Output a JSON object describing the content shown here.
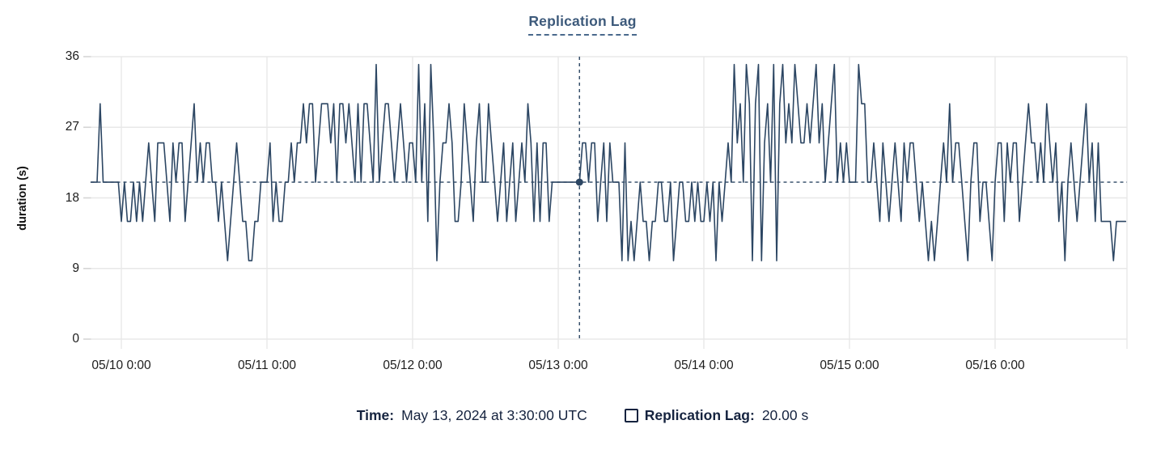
{
  "title": "Replication Lag",
  "y_axis": {
    "label": "duration (s)"
  },
  "hover_readout": {
    "time_label": "Time:",
    "time_value": "May 13, 2024 at 3:30:00 UTC",
    "series_label": "Replication Lag:",
    "series_value": "20.00 s"
  },
  "colors": {
    "line": "#2c4663",
    "crosshair": "#2c4663",
    "grid": "#e8e8e8",
    "tick": "#d5d5d5",
    "title_accent": "#3d5a7b",
    "readout_text": "#15233f"
  },
  "chart_data": {
    "type": "line",
    "title": "Replication Lag",
    "ylabel": "duration (s)",
    "unit": "s",
    "ylim": [
      0,
      36
    ],
    "y_ticks": [
      0,
      9,
      18,
      27,
      36
    ],
    "x_tick_labels": [
      "05/10 0:00",
      "05/11 0:00",
      "05/12 0:00",
      "05/13 0:00",
      "05/14 0:00",
      "05/15 0:00",
      "05/16 0:00"
    ],
    "x_start": "2024-05-09 19:00 UTC",
    "x_step_minutes": 30,
    "points_per_day": 48,
    "first_day_tick_index": 10,
    "hover_index": 161,
    "hover_value": 20,
    "hover_time": "May 13, 2024 at 3:30:00 UTC",
    "grid": true,
    "legend_position": "bottom",
    "values": [
      20,
      20,
      20,
      30,
      20,
      20,
      20,
      20,
      20,
      20,
      15,
      20,
      15,
      15,
      20,
      15,
      20,
      15,
      20,
      25,
      20,
      15,
      25,
      25,
      25,
      20,
      15,
      25,
      20,
      25,
      25,
      15,
      20,
      25,
      30,
      20,
      25,
      20,
      25,
      25,
      20,
      20,
      15,
      20,
      15,
      10,
      15,
      20,
      25,
      20,
      15,
      15,
      10,
      10,
      15,
      15,
      20,
      20,
      20,
      25,
      15,
      20,
      15,
      15,
      20,
      20,
      25,
      20,
      25,
      25,
      30,
      25,
      30,
      30,
      20,
      25,
      30,
      30,
      30,
      25,
      30,
      20,
      30,
      30,
      25,
      30,
      25,
      20,
      30,
      20,
      30,
      30,
      25,
      20,
      35,
      20,
      25,
      30,
      30,
      25,
      20,
      25,
      30,
      25,
      20,
      25,
      25,
      20,
      35,
      20,
      30,
      15,
      35,
      25,
      10,
      20,
      25,
      25,
      30,
      25,
      15,
      15,
      20,
      30,
      25,
      20,
      15,
      25,
      30,
      20,
      20,
      30,
      25,
      20,
      15,
      20,
      25,
      15,
      20,
      25,
      15,
      20,
      25,
      20,
      30,
      25,
      15,
      25,
      15,
      25,
      25,
      15,
      20,
      20,
      20,
      20,
      20,
      20,
      20,
      20,
      20,
      20,
      25,
      25,
      20,
      25,
      25,
      15,
      20,
      25,
      15,
      25,
      20,
      20,
      20,
      10,
      25,
      10,
      15,
      10,
      15,
      20,
      15,
      15,
      10,
      15,
      15,
      20,
      20,
      15,
      15,
      20,
      10,
      15,
      20,
      20,
      15,
      15,
      20,
      15,
      20,
      15,
      15,
      20,
      15,
      20,
      10,
      20,
      15,
      20,
      25,
      20,
      35,
      25,
      30,
      20,
      35,
      30,
      10,
      30,
      35,
      10,
      25,
      30,
      20,
      35,
      10,
      30,
      35,
      25,
      30,
      25,
      35,
      30,
      25,
      25,
      30,
      25,
      30,
      35,
      25,
      30,
      20,
      25,
      30,
      35,
      20,
      25,
      20,
      25,
      20,
      20,
      20,
      35,
      30,
      30,
      20,
      20,
      25,
      20,
      15,
      25,
      20,
      15,
      20,
      25,
      20,
      15,
      25,
      20,
      25,
      25,
      20,
      15,
      20,
      15,
      10,
      15,
      10,
      15,
      20,
      25,
      20,
      30,
      20,
      25,
      25,
      20,
      15,
      10,
      20,
      25,
      25,
      15,
      20,
      20,
      15,
      10,
      20,
      25,
      25,
      15,
      25,
      20,
      25,
      25,
      15,
      20,
      25,
      30,
      25,
      25,
      20,
      25,
      20,
      30,
      25,
      20,
      25,
      15,
      20,
      10,
      20,
      25,
      20,
      15,
      20,
      25,
      30,
      20,
      25,
      15,
      25,
      15,
      15,
      15,
      15,
      10,
      15,
      15,
      15,
      15
    ]
  }
}
